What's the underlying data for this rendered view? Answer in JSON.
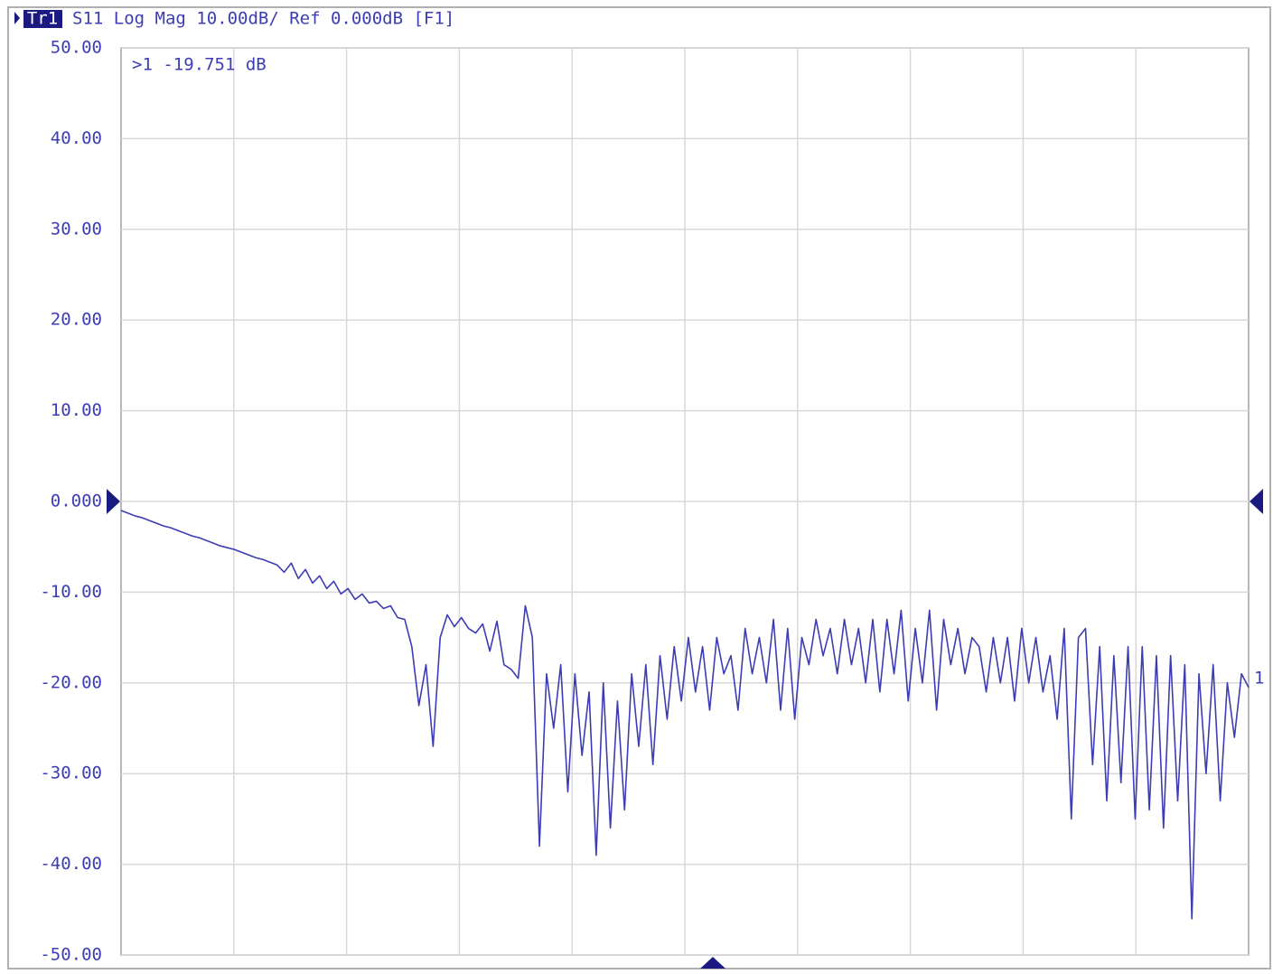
{
  "chart_data": {
    "type": "line",
    "trace_tag": "Tr1",
    "title": "S11 Log Mag 10.00dB/ Ref 0.000dB [F1]",
    "marker_readout": ">1  -19.751 dB",
    "marker_label": "1",
    "ylim": [
      -50,
      50
    ],
    "yticks": [
      {
        "value": 50,
        "label": "50.00"
      },
      {
        "value": 40,
        "label": "40.00"
      },
      {
        "value": 30,
        "label": "30.00"
      },
      {
        "value": 20,
        "label": "20.00"
      },
      {
        "value": 10,
        "label": "10.00"
      },
      {
        "value": 0,
        "label": "0.000"
      },
      {
        "value": -10,
        "label": "-10.00"
      },
      {
        "value": -20,
        "label": "-20.00"
      },
      {
        "value": -30,
        "label": "-30.00"
      },
      {
        "value": -40,
        "label": "-40.00"
      },
      {
        "value": -50,
        "label": "-50.00"
      }
    ],
    "grid": true,
    "series": [
      {
        "name": "S11",
        "color": "#3c3cb4",
        "values": [
          -1.0,
          -1.3,
          -1.6,
          -1.8,
          -2.1,
          -2.4,
          -2.7,
          -2.9,
          -3.2,
          -3.5,
          -3.8,
          -4.0,
          -4.3,
          -4.6,
          -4.9,
          -5.1,
          -5.3,
          -5.6,
          -5.9,
          -6.2,
          -6.4,
          -6.7,
          -7.0,
          -7.8,
          -6.8,
          -8.5,
          -7.5,
          -9.0,
          -8.2,
          -9.6,
          -8.8,
          -10.2,
          -9.6,
          -10.8,
          -10.2,
          -11.2,
          -11.0,
          -11.8,
          -11.5,
          -12.8,
          -13,
          -16,
          -22.5,
          -18,
          -27,
          -15,
          -12.5,
          -13.8,
          -12.8,
          -14.0,
          -14.5,
          -13.5,
          -16.5,
          -13.2,
          -18.0,
          -18.5,
          -19.5,
          -11.5,
          -15,
          -38,
          -19,
          -25,
          -18,
          -32,
          -19,
          -28,
          -21,
          -39,
          -20,
          -36,
          -22,
          -34,
          -19,
          -27,
          -18,
          -29,
          -17,
          -24,
          -16,
          -22,
          -15,
          -21,
          -16,
          -23,
          -15,
          -19,
          -17,
          -23,
          -14,
          -19,
          -15,
          -20,
          -13,
          -23,
          -14,
          -24,
          -15,
          -18,
          -13,
          -17,
          -14,
          -19,
          -13,
          -18,
          -14,
          -20,
          -13,
          -21,
          -13,
          -19,
          -12,
          -22,
          -14,
          -20,
          -12,
          -23,
          -13,
          -18,
          -14,
          -19,
          -15,
          -16,
          -21,
          -15,
          -20,
          -15,
          -22,
          -14,
          -20,
          -15,
          -21,
          -17,
          -24,
          -14,
          -35,
          -15,
          -14,
          -29,
          -16,
          -33,
          -17,
          -31,
          -16,
          -35,
          -16,
          -34,
          -17,
          -36,
          -17,
          -33,
          -18,
          -46,
          -19,
          -30,
          -18,
          -33,
          -20,
          -26,
          -19,
          -20.5
        ]
      }
    ]
  }
}
